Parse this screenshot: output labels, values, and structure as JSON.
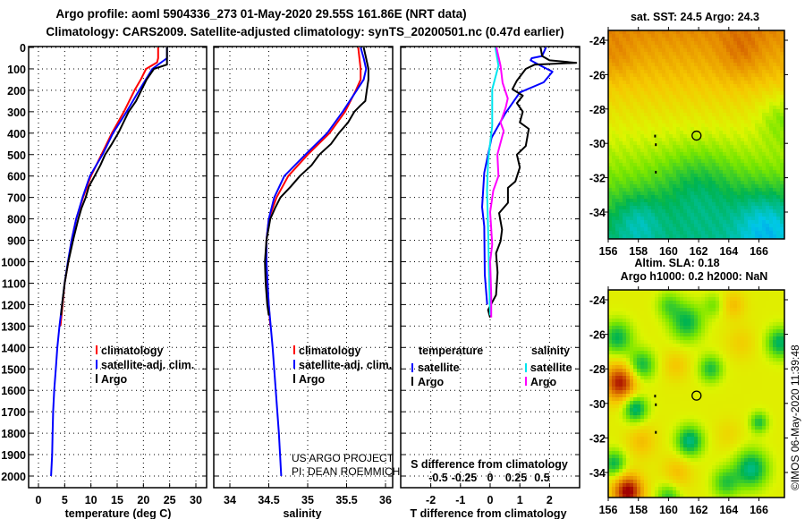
{
  "header": {
    "title_line1": "Argo profile: aoml 5904336_273 01-May-2020 29.55S 161.86E (NRT data)",
    "title_line2": "Climatology: CARS2009. Satellite-adjusted climatology: synTS_20200501.nc (0.47d earlier)"
  },
  "credits": {
    "line1": "US ARGO PROJECT",
    "line2": "PI: DEAN ROEMMICH"
  },
  "copyright": "©IMOS 06-May-2020 11:39:48",
  "colors": {
    "climatology": "#ff0000",
    "satellite": "#0000ff",
    "argo": "#000000",
    "sal_satellite": "#00e5ee",
    "sal_argo": "#ff00ff"
  },
  "chart_data": [
    {
      "type": "line",
      "title": "",
      "xlabel": "temperature (deg C)",
      "ylabel": "",
      "xlim": [
        -2,
        31
      ],
      "ylim": [
        2050,
        -15
      ],
      "xticks": [
        "0",
        "5",
        "10",
        "15",
        "20",
        "25",
        "30"
      ],
      "yticks": [
        "0",
        "100",
        "200",
        "300",
        "400",
        "500",
        "600",
        "700",
        "800",
        "900",
        "1000",
        "1100",
        "1200",
        "1300",
        "1400",
        "1500",
        "1600",
        "1700",
        "1800",
        "1900",
        "2000"
      ],
      "grid": true,
      "legend": {
        "placement": "lower-center",
        "entries": [
          "climatology",
          "satellite-adj. clim.",
          "Argo"
        ]
      },
      "series": [
        {
          "name": "climatology",
          "color": "#ff0000",
          "depth": [
            0,
            50,
            70,
            100,
            150,
            200,
            300,
            400,
            500,
            600,
            700,
            800,
            900,
            1000,
            1100,
            1200,
            1300
          ],
          "values": [
            22.8,
            22.8,
            22.6,
            20.5,
            19.5,
            18.3,
            16.3,
            14.0,
            12.0,
            10.0,
            8.5,
            7.2,
            6.3,
            5.7,
            5.0,
            4.6,
            4.2
          ]
        },
        {
          "name": "satellite-adj. clim.",
          "color": "#0000ff",
          "depth": [
            0,
            50,
            100,
            200,
            300,
            400,
            500,
            600,
            700,
            800,
            900,
            1000,
            1100,
            1200,
            1300,
            1400,
            1500,
            1600,
            1700,
            1800,
            1900,
            2000
          ],
          "values": [
            24.5,
            24.5,
            21.7,
            19.2,
            16.8,
            14.2,
            12.2,
            9.8,
            8.4,
            7.2,
            6.3,
            5.6,
            5.0,
            4.5,
            4.0,
            3.6,
            3.3,
            3.0,
            2.8,
            2.7,
            2.6,
            2.4
          ]
        },
        {
          "name": "Argo",
          "color": "#000000",
          "depth": [
            0,
            80,
            100,
            150,
            200,
            250,
            300,
            350,
            400,
            450,
            500,
            550,
            600,
            650,
            700,
            750,
            800,
            900,
            1000,
            1100,
            1200,
            1250
          ],
          "values": [
            24.5,
            24.5,
            22.0,
            20.6,
            19.6,
            18.6,
            17.2,
            16.2,
            15.2,
            14.0,
            12.7,
            11.8,
            10.7,
            9.6,
            9.0,
            8.2,
            7.6,
            6.6,
            5.7,
            5.0,
            4.5,
            4.3
          ]
        }
      ]
    },
    {
      "type": "line",
      "title": "",
      "xlabel": "salinity",
      "ylabel": "",
      "xlim": [
        33.93,
        36.07
      ],
      "ylim": [
        2050,
        -15
      ],
      "xticks": [
        "34",
        "34.5",
        "35",
        "35.5",
        "36"
      ],
      "grid": true,
      "legend": {
        "placement": "lower-center",
        "entries": [
          "climatology",
          "satellite-adj. clim.",
          "Argo"
        ]
      },
      "series": [
        {
          "name": "climatology",
          "color": "#ff0000",
          "depth": [
            0,
            100,
            150,
            200,
            300,
            400,
            500,
            600,
            700,
            800,
            900,
            1000,
            1100,
            1200,
            1300
          ],
          "values": [
            35.65,
            35.68,
            35.68,
            35.62,
            35.48,
            35.28,
            35.0,
            34.75,
            34.6,
            34.5,
            34.47,
            34.47,
            34.48,
            34.5,
            34.52
          ]
        },
        {
          "name": "satellite-adj. clim.",
          "color": "#0000ff",
          "depth": [
            0,
            50,
            100,
            150,
            200,
            300,
            400,
            500,
            600,
            700,
            800,
            900,
            1000,
            1200,
            1400,
            1600,
            1800,
            2000
          ],
          "values": [
            35.68,
            35.72,
            35.75,
            35.72,
            35.63,
            35.45,
            35.25,
            34.97,
            34.7,
            34.57,
            34.5,
            34.47,
            34.47,
            34.5,
            34.55,
            34.59,
            34.63,
            34.66
          ]
        },
        {
          "name": "Argo",
          "color": "#000000",
          "depth": [
            0,
            50,
            100,
            150,
            200,
            250,
            270,
            300,
            350,
            400,
            450,
            500,
            550,
            600,
            650,
            700,
            750,
            800,
            900,
            1000,
            1100,
            1200,
            1250
          ],
          "values": [
            35.72,
            35.75,
            35.78,
            35.78,
            35.76,
            35.74,
            35.68,
            35.6,
            35.52,
            35.4,
            35.3,
            35.15,
            35.05,
            34.9,
            34.78,
            34.65,
            34.58,
            34.52,
            34.47,
            34.45,
            34.46,
            34.48,
            34.5
          ]
        }
      ]
    },
    {
      "type": "line",
      "title": "",
      "xlabel": "T difference from climatology",
      "x2label": "S difference from climatology",
      "xlim": [
        -3,
        3
      ],
      "x2lim": [
        -0.86,
        0.86
      ],
      "ylim": [
        2050,
        -15
      ],
      "xticks": [
        "-2",
        "-1",
        "0",
        "1",
        "2"
      ],
      "x2ticks": [
        "-0.5",
        "-0.25",
        "0",
        "0.25",
        "0.5"
      ],
      "grid": true,
      "legend": {
        "placement": "lower-center",
        "temperature_heading": "temperature",
        "salinity_heading": "salinity",
        "entries": [
          "satellite",
          "Argo",
          "satellite",
          "Argo"
        ]
      },
      "series": [
        {
          "name": "temperature satellite",
          "axis": "T",
          "color": "#0000ff",
          "depth": [
            0,
            40,
            50,
            60,
            85,
            113,
            163,
            210,
            310,
            420,
            585,
            745,
            835,
            1060,
            1200
          ],
          "values": [
            1.88,
            1.75,
            1.4,
            1.36,
            1.7,
            2.1,
            1.8,
            1.0,
            0.5,
            0.05,
            -0.2,
            -0.27,
            -0.2,
            -0.18,
            -0.1
          ]
        },
        {
          "name": "temperature Argo",
          "axis": "T",
          "color": "#000000",
          "depth": [
            0,
            40,
            60,
            72,
            80,
            100,
            155,
            195,
            225,
            260,
            300,
            350,
            380,
            460,
            500,
            560,
            625,
            655,
            725,
            773,
            850,
            905,
            960,
            1050,
            1155,
            1225,
            1260
          ],
          "values": [
            1.7,
            1.75,
            2.0,
            2.9,
            1.5,
            1.2,
            0.9,
            0.75,
            1.1,
            0.9,
            1.1,
            1.0,
            1.3,
            1.2,
            0.9,
            1.0,
            0.85,
            0.6,
            0.6,
            0.3,
            0.4,
            0.35,
            0.2,
            0.25,
            0.2,
            -0.07,
            0.0
          ]
        },
        {
          "name": "salinity satellite",
          "axis": "S",
          "color": "#00e5ee",
          "depth": [
            0,
            85,
            195,
            365,
            530,
            668,
            850,
            1060,
            1250
          ],
          "values": [
            0.05,
            0.08,
            0.02,
            0.02,
            -0.02,
            -0.03,
            -0.02,
            -0.01,
            0.0
          ]
        },
        {
          "name": "salinity Argo",
          "axis": "S",
          "color": "#ff00ff",
          "depth": [
            0,
            85,
            165,
            238,
            280,
            350,
            390,
            500,
            600,
            668,
            768,
            920,
            1000,
            1155,
            1260
          ],
          "values": [
            0.06,
            0.1,
            0.12,
            0.17,
            0.15,
            0.1,
            0.13,
            0.07,
            0.08,
            0.03,
            0.0,
            0.02,
            0.0,
            0.01,
            0.01
          ]
        }
      ]
    }
  ],
  "maps": [
    {
      "title": "sat. SST: 24.5 Argo: 24.3",
      "lat_ticks": [
        "-24",
        "-26",
        "-28",
        "-30",
        "-32",
        "-34"
      ],
      "lon_ticks": [
        "156",
        "158",
        "160",
        "162",
        "164",
        "166"
      ],
      "marker": {
        "lon": 161.86,
        "lat": -29.55
      }
    },
    {
      "title_line1": "Altim. SLA: 0.18",
      "title": "Argo h1000: 0.2 h2000: NaN",
      "lat_ticks": [
        "-24",
        "-26",
        "-28",
        "-30",
        "-32",
        "-34"
      ],
      "lon_ticks": [
        "156",
        "158",
        "160",
        "162",
        "164",
        "166"
      ],
      "marker": {
        "lon": 161.86,
        "lat": -29.55
      }
    }
  ]
}
